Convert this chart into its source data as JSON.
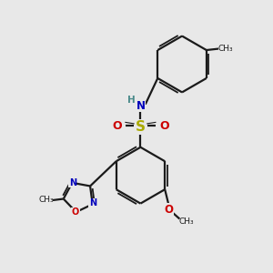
{
  "background_color": "#e8e8e8",
  "bond_color": "#1a1a1a",
  "nitrogen_color": "#0000bb",
  "oxygen_color": "#cc0000",
  "sulfur_color": "#aaaa00",
  "h_color": "#4a8a8a",
  "figsize": [
    3.0,
    3.0
  ],
  "dpi": 100,
  "xlim": [
    0,
    10
  ],
  "ylim": [
    0,
    10
  ]
}
